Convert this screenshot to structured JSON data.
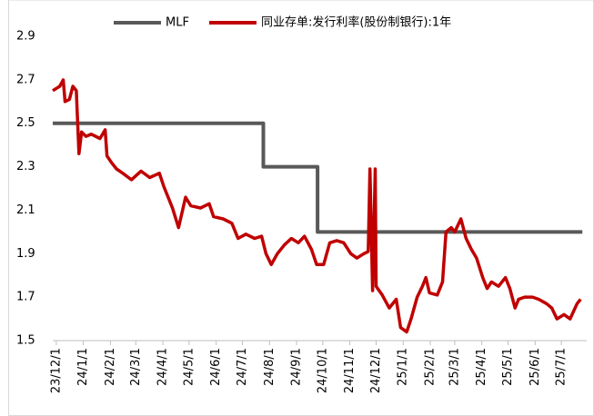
{
  "chart_data": {
    "type": "line",
    "xticks": [
      "23/12/1",
      "24/1/1",
      "24/2/1",
      "24/3/1",
      "24/4/1",
      "24/5/1",
      "24/6/1",
      "24/7/1",
      "24/8/1",
      "24/9/1",
      "24/10/1",
      "24/11/1",
      "24/12/1",
      "25/1/1",
      "25/2/1",
      "25/3/1",
      "25/4/1",
      "25/5/1",
      "25/6/1",
      "25/7/1"
    ],
    "xlim": [
      "23/11/27",
      "25/7/30"
    ],
    "ylim": [
      1.5,
      2.9
    ],
    "yticks": [
      1.5,
      1.7,
      1.9,
      2.1,
      2.3,
      2.5,
      2.7,
      2.9
    ],
    "legend": "top",
    "series": [
      {
        "name": "MLF",
        "color": "#595959",
        "x": [
          "23/11/27",
          "24/7/25",
          "24/7/25",
          "24/9/25",
          "24/9/25",
          "25/7/25"
        ],
        "values": [
          2.5,
          2.5,
          2.3,
          2.3,
          2.0,
          2.0
        ]
      },
      {
        "name": "同业存单:发行利率(股份制银行):1年",
        "color": "#c00000",
        "x": [
          "23/11/27",
          "23/12/5",
          "23/12/9",
          "23/12/11",
          "23/12/16",
          "23/12/20",
          "23/12/24",
          "23/12/27",
          "23/12/30",
          "24/1/4",
          "24/1/10",
          "24/1/20",
          "24/1/26",
          "24/1/28",
          "24/2/2",
          "24/2/8",
          "24/2/15",
          "24/2/25",
          "24/3/7",
          "24/3/17",
          "24/3/28",
          "24/4/2",
          "24/4/12",
          "24/4/19",
          "24/4/27",
          "24/5/3",
          "24/5/14",
          "24/5/24",
          "24/5/29",
          "24/6/9",
          "24/6/19",
          "24/6/26",
          "24/7/5",
          "24/7/15",
          "24/7/23",
          "24/7/28",
          "24/8/3",
          "24/8/10",
          "24/8/18",
          "24/8/26",
          "24/9/3",
          "24/9/10",
          "24/9/18",
          "24/9/24",
          "24/10/2",
          "24/10/9",
          "24/10/17",
          "24/10/25",
          "24/11/2",
          "24/11/9",
          "24/11/17",
          "24/11/22",
          "24/11/24",
          "24/11/27",
          "24/11/30",
          "24/12/1",
          "24/12/8",
          "24/12/16",
          "24/12/24",
          "24/12/29",
          "25/1/5",
          "25/1/10",
          "25/1/17",
          "25/1/23",
          "25/1/27",
          "25/1/31",
          "25/2/9",
          "25/2/15",
          "25/2/19",
          "25/2/25",
          "25/3/1",
          "25/3/8",
          "25/3/14",
          "25/3/20",
          "25/3/26",
          "25/4/2",
          "25/4/7",
          "25/4/12",
          "25/4/20",
          "25/4/28",
          "25/5/3",
          "25/5/9",
          "25/5/13",
          "25/5/20",
          "25/5/29",
          "25/6/5",
          "25/6/14",
          "25/6/20",
          "25/6/26",
          "25/7/4",
          "25/7/11",
          "25/7/19",
          "25/7/23"
        ],
        "values": [
          2.65,
          2.67,
          2.7,
          2.6,
          2.61,
          2.67,
          2.65,
          2.36,
          2.46,
          2.44,
          2.45,
          2.43,
          2.47,
          2.35,
          2.32,
          2.29,
          2.27,
          2.24,
          2.28,
          2.25,
          2.27,
          2.21,
          2.11,
          2.02,
          2.16,
          2.12,
          2.11,
          2.13,
          2.07,
          2.06,
          2.04,
          1.97,
          1.99,
          1.97,
          1.98,
          1.9,
          1.85,
          1.9,
          1.94,
          1.97,
          1.95,
          1.98,
          1.92,
          1.85,
          1.85,
          1.95,
          1.96,
          1.95,
          1.9,
          1.88,
          1.9,
          1.91,
          2.29,
          1.73,
          2.29,
          1.75,
          1.71,
          1.65,
          1.69,
          1.56,
          1.54,
          1.6,
          1.7,
          1.75,
          1.79,
          1.72,
          1.71,
          1.77,
          2.0,
          2.02,
          2.0,
          2.06,
          1.97,
          1.92,
          1.88,
          1.79,
          1.74,
          1.77,
          1.75,
          1.79,
          1.74,
          1.65,
          1.69,
          1.7,
          1.7,
          1.69,
          1.67,
          1.65,
          1.6,
          1.62,
          1.6,
          1.67,
          1.69
        ]
      }
    ]
  }
}
